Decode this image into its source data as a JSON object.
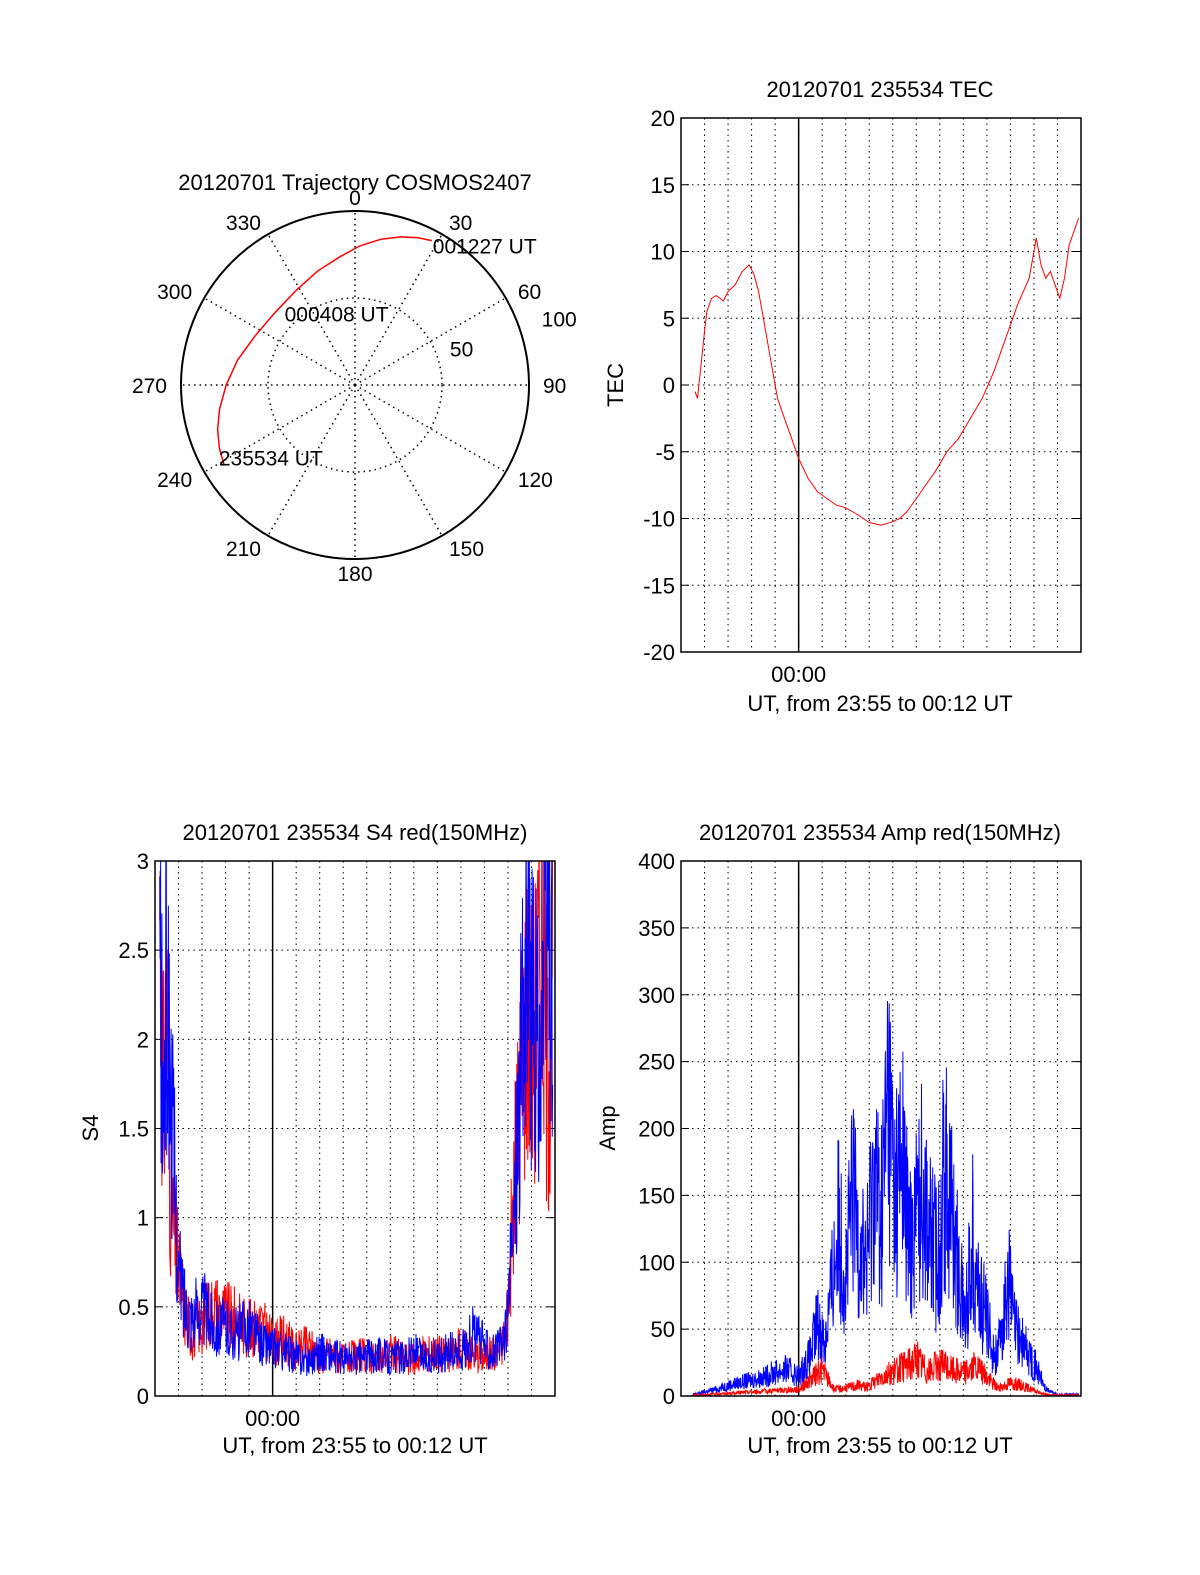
{
  "colors": {
    "red": "#ff0000",
    "blue": "#0000ff",
    "axis": "#000000",
    "grid": "#000000"
  },
  "chart_data": [
    {
      "type": "polar",
      "title": "20120701 Trajectory COSMOS2407",
      "angle_labels": [
        "0",
        "30",
        "60",
        "90",
        "120",
        "150",
        "180",
        "210",
        "240",
        "270",
        "300",
        "330"
      ],
      "ring_labels": [
        "50",
        "100"
      ],
      "rlim": [
        0,
        100
      ],
      "radius_values": [
        50,
        100
      ],
      "series": [
        {
          "color": "#ff0000",
          "points": [
            {
              "az": 239,
              "r": 88
            },
            {
              "az": 245,
              "r": 86
            },
            {
              "az": 252,
              "r": 83
            },
            {
              "az": 260,
              "r": 79
            },
            {
              "az": 270,
              "r": 74
            },
            {
              "az": 282,
              "r": 69
            },
            {
              "az": 296,
              "r": 64
            },
            {
              "az": 312,
              "r": 62
            },
            {
              "az": 328,
              "r": 64
            },
            {
              "az": 342,
              "r": 69
            },
            {
              "az": 353,
              "r": 74
            },
            {
              "az": 2,
              "r": 80
            },
            {
              "az": 10,
              "r": 85
            },
            {
              "az": 17,
              "r": 89
            },
            {
              "az": 23,
              "r": 92
            },
            {
              "az": 28,
              "r": 94
            }
          ]
        }
      ],
      "annotations": [
        {
          "text": "001227 UT",
          "az": 30,
          "r": 94
        },
        {
          "text": "000408 UT",
          "az": 318,
          "r": 57
        },
        {
          "text": "235534 UT",
          "az": 242,
          "r": 86
        }
      ]
    },
    {
      "type": "line",
      "title": "20120701 235534 TEC",
      "ylabel": "TEC",
      "xlabel": "UT, from 23:55 to 00:12 UT",
      "xlim": [
        0,
        17.0
      ],
      "ylim": [
        -20,
        20
      ],
      "yticks": [
        "20",
        "15",
        "10",
        "5",
        "0",
        "-5",
        "-10",
        "-15",
        "-20"
      ],
      "ytick_values": [
        20,
        15,
        10,
        5,
        0,
        -5,
        -10,
        -15,
        -20
      ],
      "xticks": [
        {
          "label": "00:00",
          "value": 5.0
        }
      ],
      "xgrid_minutes": [
        1,
        2,
        3,
        4,
        5,
        6,
        7,
        8,
        9,
        10,
        11,
        12,
        13,
        14,
        15,
        16
      ],
      "series": [
        {
          "color": "#ff0000",
          "x": [
            0.6,
            0.7,
            0.85,
            1.0,
            1.1,
            1.3,
            1.5,
            1.8,
            2.0,
            2.3,
            2.6,
            2.9,
            3.1,
            3.3,
            3.5,
            3.8,
            4.1,
            4.4,
            4.7,
            5.0,
            5.4,
            5.8,
            6.2,
            6.6,
            7.0,
            7.5,
            8.0,
            8.5,
            8.9,
            9.3,
            9.6,
            10.0,
            10.4,
            10.8,
            11.3,
            11.8,
            12.3,
            12.8,
            13.3,
            13.8,
            14.3,
            14.8,
            15.1,
            15.3,
            15.5,
            15.7,
            15.9,
            16.1,
            16.3,
            16.5,
            16.7,
            16.9
          ],
          "y": [
            -0.5,
            -1.0,
            1.5,
            4.0,
            5.5,
            6.5,
            6.7,
            6.3,
            7.0,
            7.5,
            8.5,
            9.0,
            8.3,
            7.0,
            5.0,
            2.0,
            -1.0,
            -2.5,
            -4.0,
            -5.5,
            -7.0,
            -8.0,
            -8.5,
            -9.0,
            -9.2,
            -9.7,
            -10.3,
            -10.5,
            -10.3,
            -10.0,
            -9.5,
            -8.5,
            -7.5,
            -6.5,
            -5.0,
            -4.0,
            -2.5,
            -1.0,
            1.0,
            3.5,
            6.0,
            8.0,
            11.0,
            9.0,
            8.0,
            8.5,
            7.5,
            6.5,
            8.0,
            10.5,
            11.5,
            12.5
          ]
        }
      ]
    },
    {
      "type": "line",
      "title": "20120701 235534 S4 red(150MHz)",
      "ylabel": "S4",
      "xlabel": "UT, from 23:55 to 00:12 UT",
      "xlim": [
        0,
        17.0
      ],
      "ylim": [
        0,
        3
      ],
      "yticks": [
        "3",
        "2.5",
        "2",
        "1.5",
        "1",
        "0.5",
        "0"
      ],
      "ytick_values": [
        3,
        2.5,
        2,
        1.5,
        1,
        0.5,
        0
      ],
      "xticks": [
        {
          "label": "00:00",
          "value": 5.0
        }
      ],
      "xgrid_minutes": [
        1,
        2,
        3,
        4,
        5,
        6,
        7,
        8,
        9,
        10,
        11,
        12,
        13,
        14,
        15,
        16
      ],
      "series": [
        {
          "color": "#ff0000",
          "x": [
            0.2,
            0.35,
            0.5,
            0.65,
            0.8,
            1.0,
            1.3,
            1.6,
            2.0,
            2.5,
            3.0,
            3.5,
            4.0,
            4.5,
            5.0,
            5.5,
            6.0,
            6.5,
            7.0,
            7.5,
            8.0,
            8.5,
            9.0,
            9.5,
            10.0,
            10.5,
            11.0,
            11.5,
            12.0,
            12.5,
            13.0,
            13.5,
            14.0,
            14.5,
            14.8,
            15.0,
            15.2,
            15.5,
            15.8,
            16.1,
            16.4,
            16.7,
            16.9
          ],
          "y": [
            2.8,
            1.6,
            2.2,
            1.2,
            0.9,
            0.7,
            0.45,
            0.35,
            0.42,
            0.5,
            0.45,
            0.42,
            0.38,
            0.4,
            0.3,
            0.32,
            0.25,
            0.28,
            0.22,
            0.24,
            0.2,
            0.22,
            0.23,
            0.2,
            0.25,
            0.22,
            0.2,
            0.24,
            0.25,
            0.22,
            0.28,
            0.24,
            0.22,
            0.25,
            0.3,
            0.5,
            1.0,
            1.7,
            2.3,
            2.0,
            2.6,
            1.8,
            2.2
          ]
        },
        {
          "color": "#0000ff",
          "x": [
            0.2,
            0.35,
            0.5,
            0.65,
            0.8,
            1.0,
            1.3,
            1.6,
            2.0,
            2.5,
            3.0,
            3.5,
            4.0,
            4.5,
            5.0,
            5.5,
            6.0,
            6.5,
            7.0,
            7.5,
            8.0,
            8.5,
            9.0,
            9.5,
            10.0,
            10.5,
            11.0,
            11.5,
            12.0,
            12.5,
            13.0,
            13.5,
            14.0,
            14.5,
            14.8,
            15.0,
            15.2,
            15.5,
            15.8,
            16.1,
            16.4,
            16.7,
            16.9
          ],
          "y": [
            2.5,
            1.5,
            2.3,
            1.8,
            1.3,
            0.7,
            0.5,
            0.45,
            0.5,
            0.4,
            0.38,
            0.35,
            0.4,
            0.3,
            0.27,
            0.25,
            0.22,
            0.2,
            0.25,
            0.22,
            0.21,
            0.2,
            0.22,
            0.24,
            0.21,
            0.22,
            0.25,
            0.21,
            0.22,
            0.25,
            0.24,
            0.35,
            0.28,
            0.25,
            0.3,
            0.45,
            0.9,
            1.8,
            2.4,
            2.1,
            1.9,
            2.7,
            2.1
          ]
        }
      ]
    },
    {
      "type": "line",
      "title": "20120701 235534 Amp red(150MHz)",
      "ylabel": "Amp",
      "xlabel": "UT, from 23:55 to 00:12 UT",
      "xlim": [
        0,
        17.0
      ],
      "ylim": [
        0,
        400
      ],
      "yticks": [
        "400",
        "350",
        "300",
        "250",
        "200",
        "150",
        "100",
        "50",
        "0"
      ],
      "ytick_values": [
        400,
        350,
        300,
        250,
        200,
        150,
        100,
        50,
        0
      ],
      "xticks": [
        {
          "label": "00:00",
          "value": 5.0
        }
      ],
      "xgrid_minutes": [
        1,
        2,
        3,
        4,
        5,
        6,
        7,
        8,
        9,
        10,
        11,
        12,
        13,
        14,
        15,
        16
      ],
      "series": [
        {
          "color": "#0000ff",
          "x": [
            0.5,
            1.0,
            1.5,
            2.0,
            2.5,
            3.0,
            3.5,
            4.0,
            4.5,
            5.0,
            5.5,
            5.8,
            6.1,
            6.4,
            6.7,
            7.0,
            7.3,
            7.6,
            7.9,
            8.2,
            8.5,
            8.8,
            9.1,
            9.4,
            9.7,
            10.0,
            10.3,
            10.6,
            10.9,
            11.2,
            11.5,
            11.8,
            12.1,
            12.4,
            12.7,
            13.0,
            13.3,
            13.6,
            13.9,
            14.2,
            14.5,
            15.0,
            15.5,
            16.0,
            16.9
          ],
          "y": [
            1,
            3,
            5,
            8,
            10,
            12,
            14,
            18,
            20,
            15,
            30,
            55,
            40,
            80,
            130,
            90,
            150,
            115,
            100,
            170,
            130,
            230,
            150,
            180,
            110,
            140,
            160,
            120,
            100,
            170,
            140,
            90,
            60,
            120,
            70,
            60,
            30,
            40,
            90,
            50,
            40,
            25,
            5,
            1,
            1
          ]
        },
        {
          "color": "#ff0000",
          "x": [
            0.5,
            1.0,
            2.0,
            3.0,
            4.0,
            5.0,
            5.5,
            6.0,
            6.5,
            7.0,
            7.5,
            8.0,
            8.5,
            9.0,
            9.5,
            10.0,
            10.5,
            11.0,
            11.5,
            12.0,
            12.5,
            13.0,
            13.5,
            14.0,
            14.5,
            15.0,
            15.5,
            16.0,
            16.9
          ],
          "y": [
            0.5,
            1,
            2,
            3,
            4,
            5,
            12,
            20,
            5,
            6,
            8,
            7,
            15,
            18,
            22,
            28,
            18,
            24,
            20,
            18,
            22,
            14,
            6,
            10,
            8,
            4,
            1,
            0.5,
            0.5
          ]
        }
      ]
    }
  ]
}
